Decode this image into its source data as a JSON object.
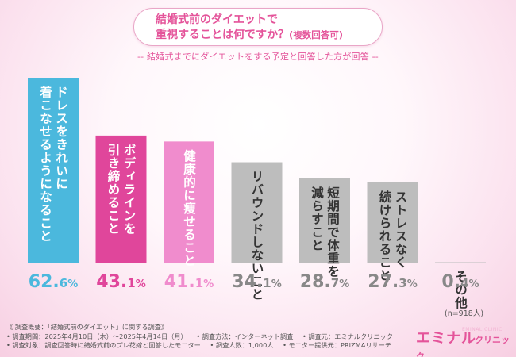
{
  "header": {
    "title_line1": "結婚式前のダイエットで",
    "title_line2": "重視することは何ですか？",
    "title_note": "(複数回答可)",
    "subtitle": "-- 結婚式までにダイエットをする予定と回答した方が回答 --"
  },
  "chart_data": {
    "type": "bar",
    "categories": [
      "ドレスをきれいに着こなせるようになること",
      "ボディラインを引き締めること",
      "健康的に痩せること",
      "リバウンドしないこと",
      "短期間で体重を減らすこと",
      "ストレスなく続けられること",
      "その他"
    ],
    "label_columns": [
      [
        "ドレスをきれいに",
        "着こなせるようになること"
      ],
      [
        "ボディラインを",
        "引き締めること"
      ],
      [
        "健康的に痩せること"
      ],
      [
        "リバウンドしないこと"
      ],
      [
        "短期間で体重を",
        "減らすこと"
      ],
      [
        "ストレスなく",
        "続けられること"
      ],
      [
        "その他"
      ]
    ],
    "values": [
      62.6,
      43.1,
      41.1,
      34.1,
      28.7,
      27.3,
      0.4
    ],
    "value_labels": [
      [
        "62.",
        "6",
        "%"
      ],
      [
        "43.",
        "1",
        "%"
      ],
      [
        "41.",
        "1",
        "%"
      ],
      [
        "34.",
        "1",
        "%"
      ],
      [
        "28.",
        "7",
        "%"
      ],
      [
        "27.",
        "3",
        "%"
      ],
      [
        "0.",
        "4",
        "%"
      ]
    ],
    "colors": [
      "#4bb8dd",
      "#e0469b",
      "#f08ccd",
      "#bdbdbd",
      "#bdbdbd",
      "#bdbdbd",
      "#bdbdbd"
    ],
    "value_colors": [
      "#4bb8dd",
      "#e0469b",
      "#f08ccd",
      "#888888",
      "#888888",
      "#888888",
      "#888888"
    ],
    "ylim": [
      0,
      62.6
    ],
    "n_label": "(n=918人)"
  },
  "footer": {
    "lines": [
      [
        "《 調査概要：「結婚式前のダイエット」に関する調査》"
      ],
      [
        "• 調査期間：2025年4月10日（木）〜2025年4月14日（月）",
        "• 調査方法：インターネット調査",
        "• 調査元：エミナルクリニック"
      ],
      [
        "• 調査対象：調査回答時に結婚式前のプレ花嫁と回答したモニター",
        "• 調査人数：1,000人",
        "• モニター提供元：PRIZMAリサーチ"
      ]
    ]
  },
  "logo": {
    "main": "エミナル",
    "sub": "クリニック",
    "ghost": "EMINAL CLINIC"
  }
}
